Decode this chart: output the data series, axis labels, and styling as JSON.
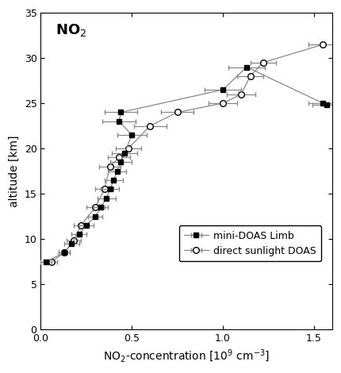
{
  "limb_x": [
    0.03,
    0.13,
    0.17,
    0.21,
    0.25,
    0.3,
    0.33,
    0.36,
    0.38,
    0.4,
    0.42,
    0.44,
    0.46,
    0.5,
    0.43,
    0.44,
    1.0,
    1.13,
    1.55,
    1.57
  ],
  "limb_y": [
    7.5,
    8.5,
    9.5,
    10.5,
    11.5,
    12.5,
    13.5,
    14.5,
    15.5,
    16.5,
    17.5,
    18.5,
    19.5,
    21.5,
    23.0,
    24.0,
    26.5,
    29.0,
    25.0,
    24.8
  ],
  "limb_xerr": [
    0.03,
    0.03,
    0.04,
    0.04,
    0.04,
    0.04,
    0.04,
    0.05,
    0.05,
    0.05,
    0.05,
    0.06,
    0.07,
    0.08,
    0.09,
    0.09,
    0.1,
    0.1,
    0.08,
    0.08
  ],
  "ds_x": [
    0.06,
    0.13,
    0.18,
    0.22,
    0.3,
    0.35,
    0.38,
    0.43,
    0.48,
    0.6,
    0.75,
    1.0,
    1.1,
    1.15,
    1.22,
    1.55
  ],
  "ds_y": [
    7.5,
    8.5,
    9.8,
    11.5,
    13.5,
    15.5,
    18.0,
    19.0,
    20.0,
    22.5,
    24.0,
    25.0,
    26.0,
    28.0,
    29.5,
    31.5
  ],
  "ds_xerr": [
    0.03,
    0.03,
    0.04,
    0.04,
    0.05,
    0.05,
    0.06,
    0.06,
    0.07,
    0.09,
    0.09,
    0.08,
    0.08,
    0.07,
    0.07,
    0.08
  ],
  "title": "NO$_2$",
  "xlabel": "NO$_2$-concentration [10$^9$ cm$^{-3}$]",
  "ylabel": "altitude [km]",
  "xlim": [
    0.0,
    1.6
  ],
  "ylim": [
    0,
    35
  ],
  "xticks": [
    0.0,
    0.5,
    1.0,
    1.5
  ],
  "yticks": [
    0,
    5,
    10,
    15,
    20,
    25,
    30,
    35
  ],
  "legend_limb": "mini-DOAS Limb",
  "legend_ds": "direct sunlight DOAS",
  "line_color": "#888888",
  "limb_marker_color": "#000000",
  "ds_marker_color": "#000000",
  "bg_color": "#ffffff"
}
